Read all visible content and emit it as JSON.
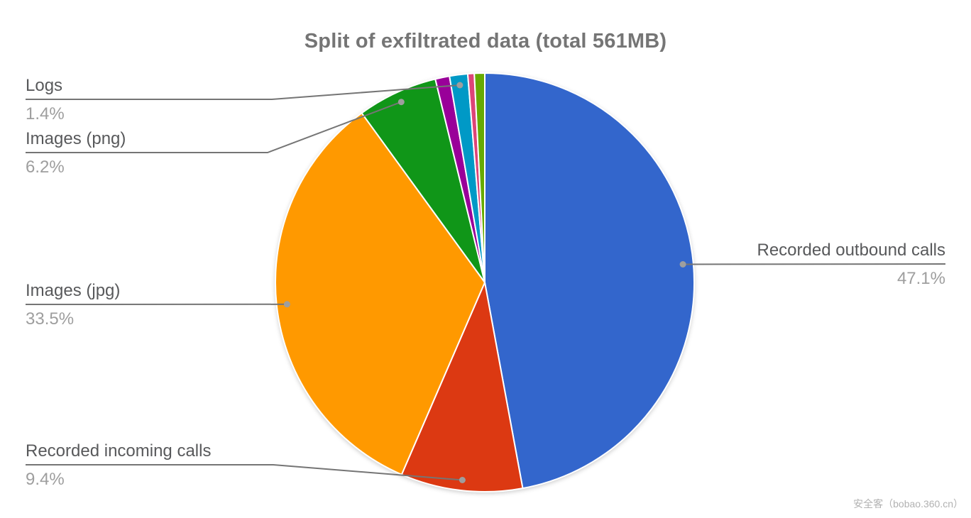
{
  "title": "Split of exfiltrated data (total 561MB)",
  "watermark": "安全客（bobao.360.cn）",
  "chart_data": {
    "type": "pie",
    "title": "Split of exfiltrated data (total 561MB)",
    "total": "561MB",
    "legend_position": "none",
    "slices": [
      {
        "label": "Recorded outbound calls",
        "pct": 47.1,
        "color": "#3366CC",
        "labeled": true
      },
      {
        "label": "Recorded incoming calls",
        "pct": 9.4,
        "color": "#DC3912",
        "labeled": true
      },
      {
        "label": "Images (jpg)",
        "pct": 33.5,
        "color": "#FF9900",
        "labeled": true
      },
      {
        "label": "Images (png)",
        "pct": 6.2,
        "color": "#109618",
        "labeled": true
      },
      {
        "label": "",
        "pct": 1.1,
        "color": "#990099",
        "labeled": false
      },
      {
        "label": "Logs",
        "pct": 1.4,
        "color": "#0099C6",
        "labeled": true
      },
      {
        "label": "",
        "pct": 0.5,
        "color": "#DD4477",
        "labeled": false
      },
      {
        "label": "",
        "pct": 0.8,
        "color": "#66AA00",
        "labeled": false
      }
    ],
    "callouts": [
      {
        "name": "Logs",
        "pct_text": "1.4%",
        "slice_index": 5,
        "side": "left"
      },
      {
        "name": "Images (png)",
        "pct_text": "6.2%",
        "slice_index": 3,
        "side": "left"
      },
      {
        "name": "Images (jpg)",
        "pct_text": "33.5%",
        "slice_index": 2,
        "side": "left"
      },
      {
        "name": "Recorded incoming calls",
        "pct_text": "9.4%",
        "slice_index": 1,
        "side": "left"
      },
      {
        "name": "Recorded outbound calls",
        "pct_text": "47.1%",
        "slice_index": 0,
        "side": "right"
      }
    ],
    "colors": {
      "title_text": "#757575",
      "label_name_text": "#58595b",
      "label_pct_text": "#9e9e9e",
      "leader_line": "#757575",
      "leader_dot": "#9e9e9e",
      "slice_border": "#ffffff"
    }
  }
}
